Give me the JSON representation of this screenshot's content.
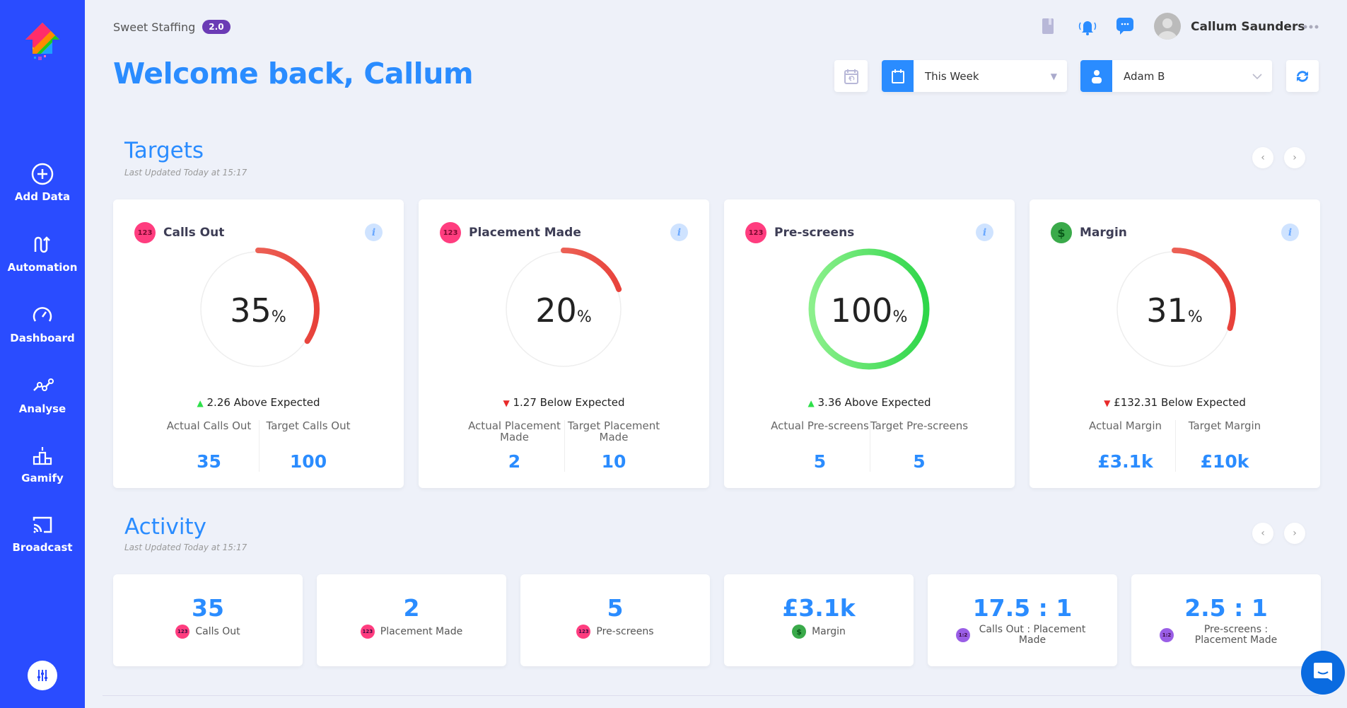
{
  "sidebar": {
    "items": [
      {
        "label": "Add Data",
        "icon": "plus-circle-icon"
      },
      {
        "label": "Automation",
        "icon": "automation-icon"
      },
      {
        "label": "Dashboard",
        "icon": "gauge-icon"
      },
      {
        "label": "Analyse",
        "icon": "analyse-icon"
      },
      {
        "label": "Gamify",
        "icon": "podium-icon"
      },
      {
        "label": "Broadcast",
        "icon": "cast-icon"
      }
    ]
  },
  "header": {
    "company": "Sweet Staffing",
    "version": "2.0",
    "welcome": "Welcome back, Callum",
    "user": "Callum Saunders",
    "period": "This Week",
    "person": "Adam B"
  },
  "targets": {
    "title": "Targets",
    "updated": "Last Updated Today at 15:17",
    "cards": [
      {
        "title": "Calls Out",
        "chip": "123",
        "chip_color": "#ff3d7f",
        "percent": 35,
        "pct_unit": "%",
        "direction": "up",
        "expected": "2.26 Above Expected",
        "actual_label": "Actual Calls Out",
        "actual": "35",
        "target_label": "Target Calls Out",
        "target": "100"
      },
      {
        "title": "Placement Made",
        "chip": "123",
        "chip_color": "#ff3d7f",
        "percent": 20,
        "pct_unit": "%",
        "direction": "down",
        "expected": "1.27 Below Expected",
        "actual_label": "Actual Placement Made",
        "actual": "2",
        "target_label": "Target Placement Made",
        "target": "10"
      },
      {
        "title": "Pre-screens",
        "chip": "123",
        "chip_color": "#ff3d7f",
        "percent": 100,
        "pct_unit": "%",
        "direction": "up",
        "expected": "3.36 Above Expected",
        "actual_label": "Actual Pre-screens",
        "actual": "5",
        "target_label": "Target Pre-screens",
        "target": "5"
      },
      {
        "title": "Margin",
        "chip": "$",
        "chip_color": "#3aaa4a",
        "percent": 31,
        "pct_unit": "%",
        "direction": "down",
        "expected": "£132.31 Below Expected",
        "actual_label": "Actual Margin",
        "actual": "£3.1k",
        "target_label": "Target Margin",
        "target": "£10k"
      }
    ]
  },
  "activity": {
    "title": "Activity",
    "updated": "Last Updated Today at 15:17",
    "cards": [
      {
        "value": "35",
        "label": "Calls Out",
        "chip": "123",
        "chip_color": "#ff3d7f"
      },
      {
        "value": "2",
        "label": "Placement Made",
        "chip": "123",
        "chip_color": "#ff3d7f"
      },
      {
        "value": "5",
        "label": "Pre-screens",
        "chip": "123",
        "chip_color": "#ff3d7f"
      },
      {
        "value": "£3.1k",
        "label": "Margin",
        "chip": "$",
        "chip_color": "#3aaa4a"
      },
      {
        "value": "17.5 : 1",
        "label": "Calls Out : Placement Made",
        "chip": "1:2",
        "chip_color": "#9a5ee6"
      },
      {
        "value": "2.5 : 1",
        "label": "Pre-screens : Placement Made",
        "chip": "1:2",
        "chip_color": "#9a5ee6"
      }
    ]
  }
}
